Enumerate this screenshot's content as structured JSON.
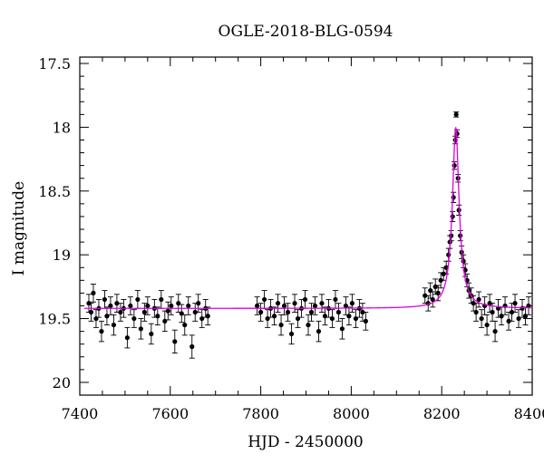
{
  "chart_data": {
    "type": "scatter",
    "title": "OGLE-2018-BLG-0594",
    "xlabel": "HJD - 2450000",
    "ylabel": "I magnitude",
    "xlim": [
      7400,
      8400
    ],
    "ylim": [
      20.1,
      17.45
    ],
    "y_inverted": true,
    "x_ticks": [
      7400,
      7600,
      7800,
      8000,
      8200,
      8400
    ],
    "y_ticks": [
      17.5,
      18,
      18.5,
      19,
      19.5,
      20
    ],
    "x_tick_labels": [
      "7400",
      "7600",
      "7800",
      "8000",
      "8200",
      "8400"
    ],
    "y_tick_labels": [
      "17.5",
      "18",
      "18.5",
      "19",
      "19.5",
      "20"
    ],
    "grid": false,
    "legend": "none",
    "colors": {
      "points": "#000000",
      "model": "#e000e0"
    },
    "series": [
      {
        "kind": "points_with_error_bars",
        "x": [
          7420,
          7425,
          7430,
          7436,
          7442,
          7448,
          7455,
          7460,
          7468,
          7475,
          7482,
          7490,
          7497,
          7505,
          7512,
          7520,
          7528,
          7535,
          7543,
          7550,
          7558,
          7565,
          7572,
          7580,
          7588,
          7595,
          7602,
          7610,
          7618,
          7625,
          7632,
          7640,
          7648,
          7655,
          7662,
          7670,
          7678,
          7683,
          7792,
          7800,
          7808,
          7815,
          7822,
          7830,
          7838,
          7845,
          7852,
          7860,
          7868,
          7875,
          7882,
          7890,
          7898,
          7905,
          7912,
          7920,
          7928,
          7935,
          7942,
          7950,
          7958,
          7965,
          7972,
          7980,
          7988,
          7995,
          8002,
          8010,
          8018,
          8025,
          8032,
          8163,
          8170,
          8175,
          8180,
          8186,
          8192,
          8198,
          8204,
          8210,
          8215,
          8218,
          8221,
          8224,
          8226,
          8228,
          8230,
          8232,
          8234,
          8236,
          8238,
          8241,
          8244,
          8248,
          8252,
          8256,
          8260,
          8265,
          8270,
          8276,
          8282,
          8288,
          8295,
          8300,
          8306,
          8312,
          8318,
          8325,
          8332,
          8340,
          8348,
          8355,
          8362,
          8370,
          8378,
          8385,
          8392
        ],
        "y": [
          19.38,
          19.45,
          19.3,
          19.5,
          19.42,
          19.6,
          19.35,
          19.48,
          19.4,
          19.55,
          19.38,
          19.45,
          19.42,
          19.65,
          19.4,
          19.5,
          19.35,
          19.58,
          19.45,
          19.4,
          19.62,
          19.42,
          19.48,
          19.35,
          19.52,
          19.44,
          19.4,
          19.68,
          19.38,
          19.46,
          19.55,
          19.4,
          19.72,
          19.45,
          19.38,
          19.5,
          19.42,
          19.48,
          19.4,
          19.45,
          19.35,
          19.5,
          19.42,
          19.48,
          19.38,
          19.55,
          19.4,
          19.45,
          19.62,
          19.38,
          19.5,
          19.42,
          19.35,
          19.55,
          19.45,
          19.4,
          19.6,
          19.38,
          19.48,
          19.42,
          19.5,
          19.35,
          19.45,
          19.58,
          19.4,
          19.48,
          19.38,
          19.5,
          19.42,
          19.45,
          19.52,
          19.32,
          19.38,
          19.28,
          19.35,
          19.25,
          19.3,
          19.2,
          19.15,
          19.1,
          19.0,
          18.9,
          18.85,
          18.7,
          18.55,
          18.3,
          18.1,
          17.9,
          18.05,
          18.4,
          18.65,
          18.85,
          18.98,
          19.05,
          19.12,
          19.2,
          19.28,
          19.32,
          19.38,
          19.45,
          19.35,
          19.5,
          19.4,
          19.55,
          19.38,
          19.45,
          19.6,
          19.42,
          19.48,
          19.4,
          19.52,
          19.45,
          19.38,
          19.5,
          19.42,
          19.48,
          19.4
        ],
        "yerr": [
          0.07,
          0.07,
          0.07,
          0.07,
          0.07,
          0.08,
          0.07,
          0.07,
          0.07,
          0.08,
          0.07,
          0.07,
          0.07,
          0.08,
          0.07,
          0.07,
          0.07,
          0.08,
          0.07,
          0.07,
          0.08,
          0.07,
          0.07,
          0.07,
          0.08,
          0.07,
          0.07,
          0.09,
          0.07,
          0.07,
          0.08,
          0.07,
          0.09,
          0.07,
          0.07,
          0.07,
          0.07,
          0.07,
          0.07,
          0.07,
          0.07,
          0.07,
          0.07,
          0.07,
          0.07,
          0.08,
          0.07,
          0.07,
          0.08,
          0.07,
          0.07,
          0.07,
          0.07,
          0.08,
          0.07,
          0.07,
          0.08,
          0.07,
          0.07,
          0.07,
          0.07,
          0.07,
          0.07,
          0.08,
          0.07,
          0.07,
          0.07,
          0.07,
          0.07,
          0.07,
          0.07,
          0.06,
          0.06,
          0.06,
          0.06,
          0.06,
          0.06,
          0.06,
          0.05,
          0.05,
          0.05,
          0.05,
          0.04,
          0.04,
          0.04,
          0.03,
          0.03,
          0.02,
          0.03,
          0.03,
          0.04,
          0.04,
          0.05,
          0.05,
          0.05,
          0.05,
          0.06,
          0.06,
          0.06,
          0.07,
          0.06,
          0.07,
          0.07,
          0.08,
          0.07,
          0.07,
          0.08,
          0.07,
          0.07,
          0.07,
          0.07,
          0.07,
          0.07,
          0.07,
          0.07,
          0.07,
          0.07
        ]
      },
      {
        "kind": "model_curve",
        "baseline": 19.42,
        "peak_x": 8231,
        "peak_y": 18.0,
        "width": 6.5,
        "x_range": [
          7410,
          8400
        ]
      }
    ]
  }
}
